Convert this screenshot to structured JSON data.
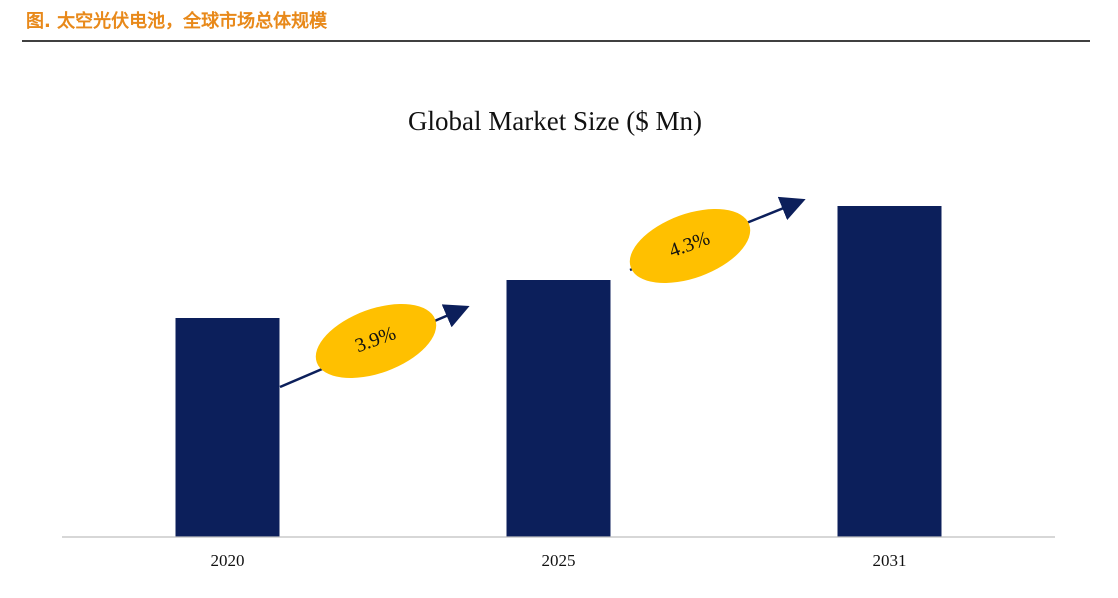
{
  "header": {
    "title": "图. 太空光伏电池，全球市场总体规模"
  },
  "chart_data": {
    "type": "bar",
    "title": "Global Market Size ($ Mn)",
    "categories": [
      "2020",
      "2025",
      "2031"
    ],
    "values": [
      219,
      257,
      331
    ],
    "color": "#0c1f5b",
    "ylim": [
      0,
      340
    ],
    "grid": false,
    "annotations": [
      "3.9%",
      "4.3%"
    ]
  }
}
